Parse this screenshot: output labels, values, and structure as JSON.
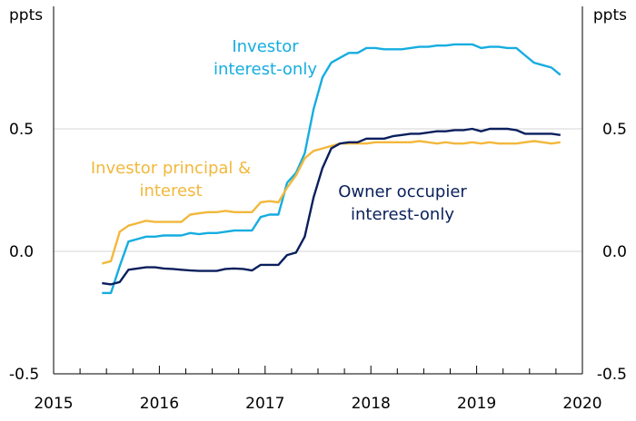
{
  "chart_data": {
    "type": "line",
    "y_unit_left": "ppts",
    "y_unit_right": "ppts",
    "ylim": [
      -0.5,
      1.0
    ],
    "xlim": [
      2015.0,
      2020.0
    ],
    "y_ticks": [
      {
        "value": 0.5,
        "label": "0.5"
      },
      {
        "value": 0.0,
        "label": "0.0"
      },
      {
        "value": -0.5,
        "label": "-0.5"
      }
    ],
    "x_ticks": [
      {
        "value": 2015.0,
        "label": "2015"
      },
      {
        "value": 2016.0,
        "label": "2016"
      },
      {
        "value": 2017.0,
        "label": "2017"
      },
      {
        "value": 2018.0,
        "label": "2018"
      },
      {
        "value": 2019.0,
        "label": "2019"
      },
      {
        "value": 2020.0,
        "label": "2020"
      }
    ],
    "grid": "horizontal",
    "series": [
      {
        "name": "Investor interest-only",
        "label_lines": [
          "Investor",
          "interest-only"
        ],
        "color": "#16ADE0",
        "x": [
          2015.458,
          2015.542,
          2015.625,
          2015.708,
          2015.792,
          2015.875,
          2015.958,
          2016.042,
          2016.125,
          2016.208,
          2016.292,
          2016.375,
          2016.458,
          2016.542,
          2016.625,
          2016.708,
          2016.792,
          2016.875,
          2016.958,
          2017.042,
          2017.125,
          2017.208,
          2017.292,
          2017.375,
          2017.458,
          2017.542,
          2017.625,
          2017.708,
          2017.792,
          2017.875,
          2017.958,
          2018.042,
          2018.125,
          2018.208,
          2018.292,
          2018.375,
          2018.458,
          2018.542,
          2018.625,
          2018.708,
          2018.792,
          2018.875,
          2018.958,
          2019.042,
          2019.125,
          2019.208,
          2019.292,
          2019.375,
          2019.458,
          2019.542,
          2019.625,
          2019.708,
          2019.792
        ],
        "y": [
          -0.17,
          -0.17,
          -0.06,
          0.04,
          0.05,
          0.06,
          0.06,
          0.065,
          0.065,
          0.065,
          0.075,
          0.07,
          0.075,
          0.075,
          0.08,
          0.085,
          0.085,
          0.085,
          0.14,
          0.15,
          0.15,
          0.28,
          0.32,
          0.4,
          0.58,
          0.71,
          0.77,
          0.79,
          0.81,
          0.81,
          0.83,
          0.83,
          0.825,
          0.825,
          0.825,
          0.83,
          0.835,
          0.835,
          0.84,
          0.84,
          0.845,
          0.845,
          0.845,
          0.83,
          0.835,
          0.835,
          0.83,
          0.83,
          0.8,
          0.77,
          0.76,
          0.75,
          0.72
        ]
      },
      {
        "name": "Investor principal & interest",
        "label_lines": [
          "Investor principal &",
          "interest"
        ],
        "color": "#F2B83C",
        "x": [
          2015.458,
          2015.542,
          2015.625,
          2015.708,
          2015.792,
          2015.875,
          2015.958,
          2016.042,
          2016.125,
          2016.208,
          2016.292,
          2016.375,
          2016.458,
          2016.542,
          2016.625,
          2016.708,
          2016.792,
          2016.875,
          2016.958,
          2017.042,
          2017.125,
          2017.208,
          2017.292,
          2017.375,
          2017.458,
          2017.542,
          2017.625,
          2017.708,
          2017.792,
          2017.875,
          2017.958,
          2018.042,
          2018.125,
          2018.208,
          2018.292,
          2018.375,
          2018.458,
          2018.542,
          2018.625,
          2018.708,
          2018.792,
          2018.875,
          2018.958,
          2019.042,
          2019.125,
          2019.208,
          2019.292,
          2019.375,
          2019.458,
          2019.542,
          2019.625,
          2019.708,
          2019.792
        ],
        "y": [
          -0.05,
          -0.04,
          0.08,
          0.105,
          0.115,
          0.125,
          0.12,
          0.12,
          0.12,
          0.12,
          0.15,
          0.155,
          0.16,
          0.16,
          0.165,
          0.16,
          0.16,
          0.16,
          0.2,
          0.205,
          0.2,
          0.26,
          0.31,
          0.38,
          0.41,
          0.42,
          0.43,
          0.44,
          0.44,
          0.44,
          0.44,
          0.445,
          0.445,
          0.445,
          0.445,
          0.445,
          0.45,
          0.445,
          0.44,
          0.445,
          0.44,
          0.44,
          0.445,
          0.44,
          0.445,
          0.44,
          0.44,
          0.44,
          0.445,
          0.45,
          0.445,
          0.44,
          0.445
        ]
      },
      {
        "name": "Owner occupier interest-only",
        "label_lines": [
          "Owner occupier",
          "interest-only"
        ],
        "color": "#0A1F5C",
        "x": [
          2015.458,
          2015.542,
          2015.625,
          2015.708,
          2015.792,
          2015.875,
          2015.958,
          2016.042,
          2016.125,
          2016.208,
          2016.292,
          2016.375,
          2016.458,
          2016.542,
          2016.625,
          2016.708,
          2016.792,
          2016.875,
          2016.958,
          2017.042,
          2017.125,
          2017.208,
          2017.292,
          2017.375,
          2017.458,
          2017.542,
          2017.625,
          2017.708,
          2017.792,
          2017.875,
          2017.958,
          2018.042,
          2018.125,
          2018.208,
          2018.292,
          2018.375,
          2018.458,
          2018.542,
          2018.625,
          2018.708,
          2018.792,
          2018.875,
          2018.958,
          2019.042,
          2019.125,
          2019.208,
          2019.292,
          2019.375,
          2019.458,
          2019.542,
          2019.625,
          2019.708,
          2019.792
        ],
        "y": [
          -0.13,
          -0.135,
          -0.125,
          -0.075,
          -0.07,
          -0.065,
          -0.065,
          -0.07,
          -0.072,
          -0.075,
          -0.078,
          -0.08,
          -0.08,
          -0.08,
          -0.072,
          -0.07,
          -0.072,
          -0.078,
          -0.055,
          -0.055,
          -0.055,
          -0.015,
          -0.005,
          0.06,
          0.22,
          0.34,
          0.42,
          0.44,
          0.445,
          0.445,
          0.46,
          0.46,
          0.46,
          0.47,
          0.475,
          0.48,
          0.48,
          0.485,
          0.49,
          0.49,
          0.495,
          0.495,
          0.5,
          0.49,
          0.5,
          0.5,
          0.5,
          0.495,
          0.48,
          0.48,
          0.48,
          0.48,
          0.475
        ]
      }
    ]
  }
}
